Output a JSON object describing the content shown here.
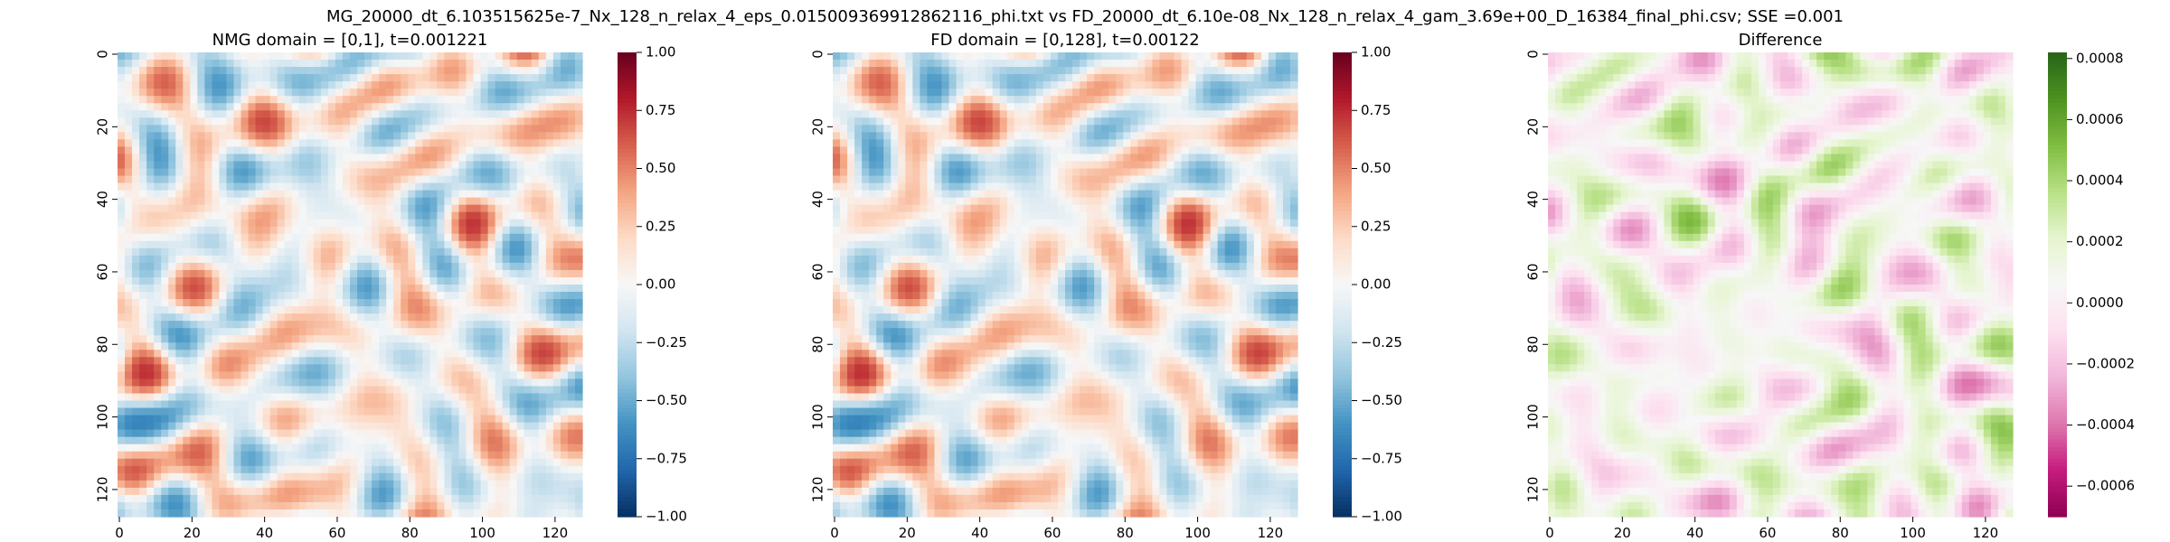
{
  "figure": {
    "title": "MG_20000_dt_6.103515625e-7_Nx_128_n_relax_4_eps_0.015009369912862116_phi.txt vs FD_20000_dt_6.10e-08_Nx_128_n_relax_4_gam_3.69e+00_D_16384_final_phi.csv; SSE =0.001"
  },
  "chart_data": [
    {
      "type": "heatmap",
      "title": "NMG domain = [0,1], t=0.001221",
      "colormap": "RdBu_r",
      "grid_size": 128,
      "x_ticks": [
        0,
        20,
        40,
        60,
        80,
        100,
        120
      ],
      "y_ticks": [
        0,
        20,
        40,
        60,
        80,
        100,
        120
      ],
      "colorbar": {
        "range": [
          -1.0,
          1.0
        ],
        "ticks": [
          1.0,
          0.75,
          0.5,
          0.25,
          0.0,
          -0.25,
          -0.5,
          -0.75,
          -1.0
        ],
        "tick_labels": [
          "1.00",
          "0.75",
          "0.50",
          "0.25",
          "0.00",
          "−0.25",
          "−0.50",
          "−0.75",
          "−1.00"
        ]
      },
      "grid": false
    },
    {
      "type": "heatmap",
      "title": "FD domain = [0,128], t=0.00122",
      "colormap": "RdBu_r",
      "grid_size": 128,
      "x_ticks": [
        0,
        20,
        40,
        60,
        80,
        100,
        120
      ],
      "y_ticks": [
        0,
        20,
        40,
        60,
        80,
        100,
        120
      ],
      "colorbar": {
        "range": [
          -1.0,
          1.0
        ],
        "ticks": [
          1.0,
          0.75,
          0.5,
          0.25,
          0.0,
          -0.25,
          -0.5,
          -0.75,
          -1.0
        ],
        "tick_labels": [
          "1.00",
          "0.75",
          "0.50",
          "0.25",
          "0.00",
          "−0.25",
          "−0.50",
          "−0.75",
          "−1.00"
        ]
      },
      "grid": false
    },
    {
      "type": "heatmap",
      "title": "Difference",
      "colormap": "PiYG",
      "grid_size": 128,
      "x_ticks": [
        0,
        20,
        40,
        60,
        80,
        100,
        120
      ],
      "y_ticks": [
        0,
        20,
        40,
        60,
        80,
        100,
        120
      ],
      "colorbar": {
        "range": [
          -0.0007,
          0.00082
        ],
        "ticks": [
          0.0008,
          0.0006,
          0.0004,
          0.0002,
          0.0,
          -0.0002,
          -0.0004,
          -0.0006
        ],
        "tick_labels": [
          "0.0008",
          "0.0006",
          "0.0004",
          "0.0002",
          "0.0000",
          "−0.0002",
          "−0.0004",
          "−0.0006"
        ]
      },
      "grid": false
    }
  ]
}
